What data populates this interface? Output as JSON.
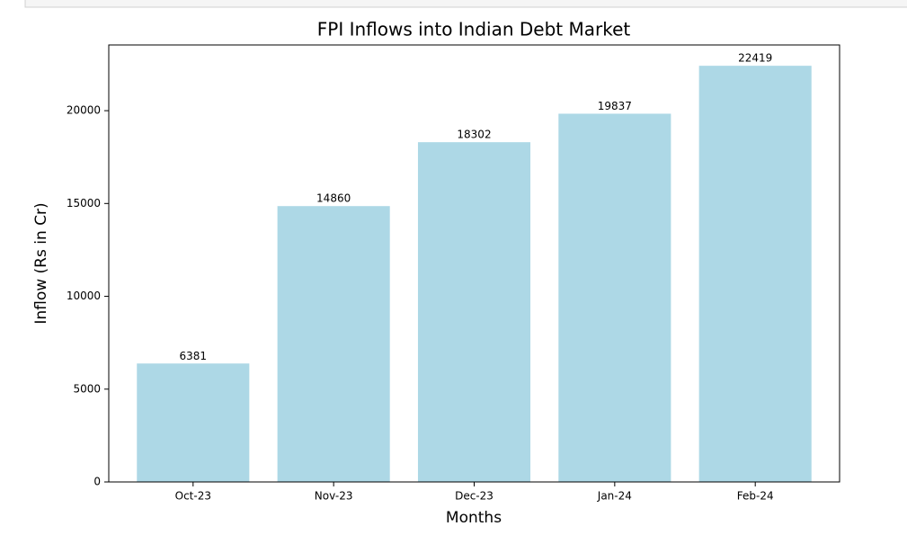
{
  "chart_data": {
    "type": "bar",
    "title": "FPI Inflows into Indian Debt Market",
    "x_label": "Months",
    "y_label": "Inflow (Rs in Cr)",
    "categories": [
      "Oct-23",
      "Nov-23",
      "Dec-23",
      "Jan-24",
      "Feb-24"
    ],
    "values": [
      6381,
      14860,
      18302,
      19837,
      22419
    ],
    "color": "#add8e6",
    "ylim": [
      0,
      23540
    ],
    "yticks": [
      0,
      5000,
      10000,
      15000,
      20000
    ]
  }
}
